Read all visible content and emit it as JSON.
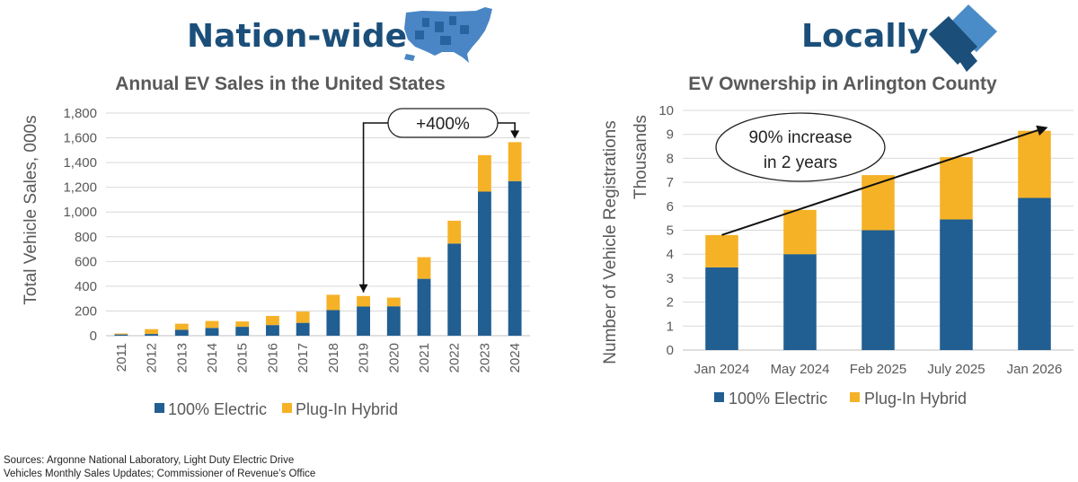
{
  "headings": {
    "left": "Nation-wide",
    "right": "Locally"
  },
  "colors": {
    "electric": "#215e91",
    "hybrid": "#f5b227",
    "heading": "#1b4f7a",
    "map": "#4a86c5"
  },
  "icons": {
    "map": "us-map-icon",
    "logo": "arlington-logo-icon"
  },
  "chart_data": [
    {
      "type": "bar",
      "stacked": true,
      "title": "Annual EV Sales in the United States",
      "xlabel": "",
      "ylabel": "Total Vehicle Sales, 000s",
      "categories": [
        "2011",
        "2012",
        "2013",
        "2014",
        "2015",
        "2016",
        "2017",
        "2018",
        "2019",
        "2020",
        "2021",
        "2022",
        "2023",
        "2024"
      ],
      "series": [
        {
          "name": "100% Electric",
          "values": [
            10,
            14,
            48,
            63,
            72,
            86,
            104,
            207,
            236,
            238,
            460,
            745,
            1165,
            1250
          ]
        },
        {
          "name": "Plug-In Hybrid",
          "values": [
            8,
            39,
            49,
            56,
            43,
            74,
            91,
            124,
            85,
            70,
            175,
            185,
            295,
            315
          ]
        }
      ],
      "ylim": [
        0,
        1800
      ],
      "yticks": [
        "0",
        "200",
        "400",
        "600",
        "800",
        "1,000",
        "1,200",
        "1,400",
        "1,600",
        "1,800"
      ],
      "ytick_values": [
        0,
        200,
        400,
        600,
        800,
        1000,
        1200,
        1400,
        1600,
        1800
      ],
      "grid": true,
      "legend": "bottom",
      "annotation": "+400%"
    },
    {
      "type": "bar",
      "stacked": true,
      "title": "EV Ownership in Arlington County",
      "xlabel": "",
      "ylabel": "Number of Vehicle Registrations",
      "ylabel2": "Thousands",
      "categories": [
        "Jan 2024",
        "May 2024",
        "Feb 2025",
        "July 2025",
        "Jan 2026"
      ],
      "series": [
        {
          "name": "100% Electric",
          "values": [
            3.45,
            4.0,
            5.0,
            5.45,
            6.35
          ]
        },
        {
          "name": "Plug-In Hybrid",
          "values": [
            1.35,
            1.85,
            2.3,
            2.6,
            2.8
          ]
        }
      ],
      "ylim": [
        0,
        10
      ],
      "yticks": [
        "0",
        "1",
        "2",
        "3",
        "4",
        "5",
        "6",
        "7",
        "8",
        "9",
        "10"
      ],
      "ytick_values": [
        0,
        1,
        2,
        3,
        4,
        5,
        6,
        7,
        8,
        9,
        10
      ],
      "grid": true,
      "legend": "bottom",
      "annotation_line1": "90% increase",
      "annotation_line2": "in 2 years"
    }
  ],
  "sources": {
    "line1": "Sources: Argonne National Laboratory, Light Duty Electric Drive",
    "line2": "Vehicles Monthly Sales Updates; Commissioner of Revenue’s Office"
  }
}
